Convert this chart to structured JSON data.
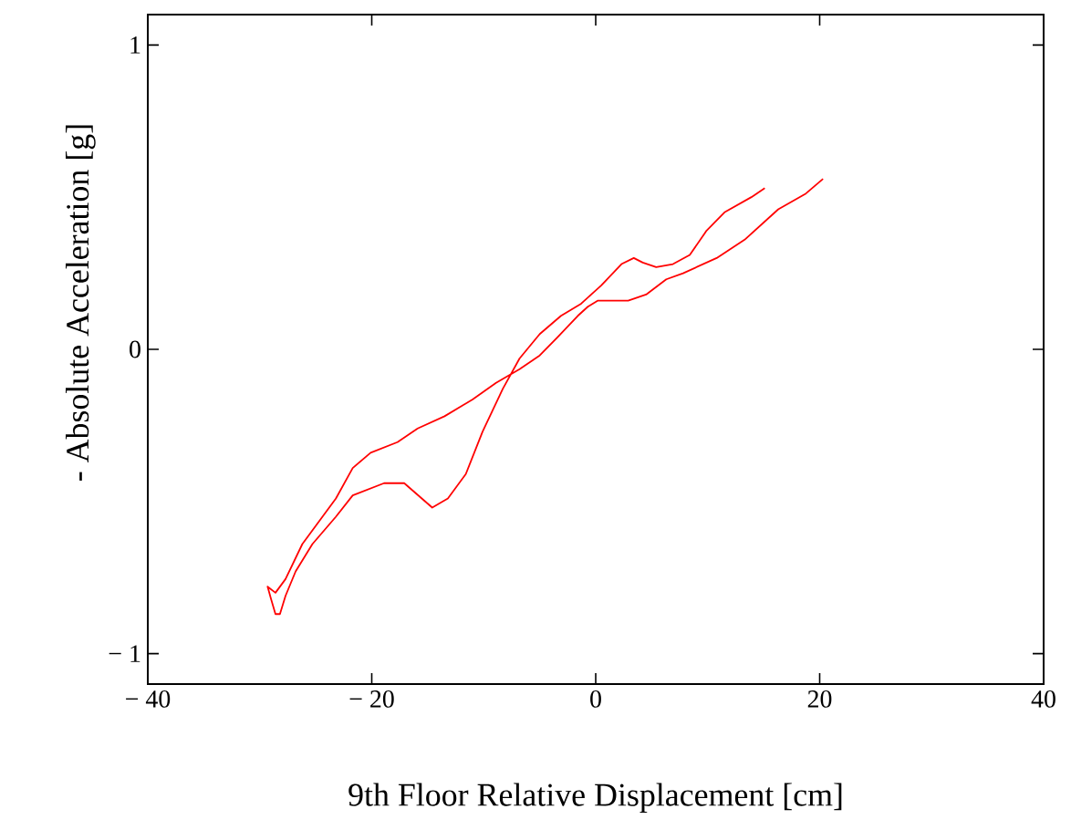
{
  "chart_data": {
    "type": "line",
    "xlabel": "9th Floor Relative Displacement [cm]",
    "ylabel": "- Absolute Acceleration [g]",
    "xlim": [
      -40,
      40
    ],
    "ylim": [
      -1.1,
      1.1
    ],
    "xticks": [
      {
        "value": -40,
        "label": "− 40"
      },
      {
        "value": -20,
        "label": "− 20"
      },
      0,
      20,
      40
    ],
    "yticks": [
      {
        "value": -1,
        "label": "− 1"
      },
      0,
      1
    ],
    "grid": false,
    "marker": "none",
    "line_style": "solid",
    "series": [
      {
        "color": "#ff0000",
        "x": [
          15.1,
          13.9,
          11.5,
          9.9,
          8.4,
          6.9,
          5.4,
          4.2,
          3.4,
          2.3,
          0.5,
          -1.3,
          -3.1,
          -5.0,
          -6.8,
          -8.3,
          -10.1,
          -11.6,
          -13.2,
          -14.6,
          -17.1,
          -18.9,
          -21.7,
          -23.2,
          -25.3,
          -26.8,
          -27.7,
          -28.2,
          -28.6,
          -29.0,
          -29.3,
          -28.6,
          -27.7,
          -26.2,
          -25.0,
          -23.2,
          -21.7,
          -20.1,
          -17.7,
          -15.9,
          -13.5,
          -11.0,
          -8.9,
          -6.8,
          -5.0,
          -3.4,
          -1.6,
          -0.7,
          0.2,
          2.9,
          4.5,
          6.3,
          7.8,
          10.8,
          13.3,
          16.3,
          18.7,
          20.3
        ],
        "values": [
          0.53,
          0.5,
          0.45,
          0.39,
          0.31,
          0.28,
          0.27,
          0.285,
          0.3,
          0.28,
          0.21,
          0.15,
          0.11,
          0.05,
          -0.03,
          -0.13,
          -0.27,
          -0.41,
          -0.49,
          -0.52,
          -0.44,
          -0.44,
          -0.48,
          -0.55,
          -0.64,
          -0.73,
          -0.81,
          -0.87,
          -0.87,
          -0.82,
          -0.78,
          -0.8,
          -0.755,
          -0.64,
          -0.58,
          -0.49,
          -0.39,
          -0.34,
          -0.305,
          -0.26,
          -0.22,
          -0.165,
          -0.11,
          -0.065,
          -0.02,
          0.04,
          0.11,
          0.14,
          0.16,
          0.16,
          0.18,
          0.23,
          0.25,
          0.3,
          0.36,
          0.46,
          0.51,
          0.56
        ]
      }
    ]
  }
}
